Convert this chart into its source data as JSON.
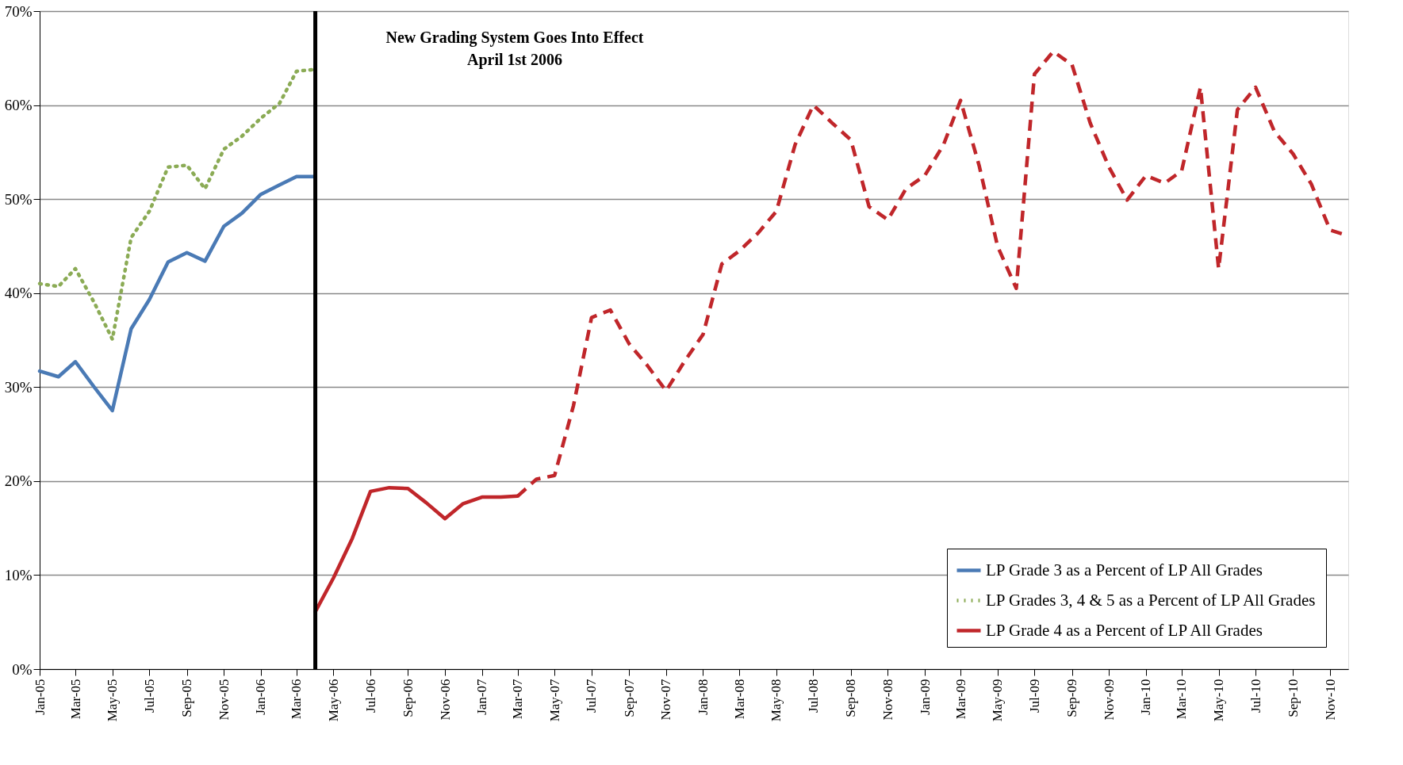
{
  "chart_data": {
    "type": "line",
    "annotations": [
      "New Grading System Goes Into Effect",
      "April 1st 2006"
    ],
    "xlim": [
      "2005-01",
      "2010-12"
    ],
    "xticks": [
      {
        "value": "2005-01",
        "label": "Jan-05"
      },
      {
        "value": "2005-03",
        "label": "Mar-05"
      },
      {
        "value": "2005-05",
        "label": "May-05"
      },
      {
        "value": "2005-07",
        "label": "Jul-05"
      },
      {
        "value": "2005-09",
        "label": "Sep-05"
      },
      {
        "value": "2005-11",
        "label": "Nov-05"
      },
      {
        "value": "2006-01",
        "label": "Jan-06"
      },
      {
        "value": "2006-03",
        "label": "Mar-06"
      },
      {
        "value": "2006-05",
        "label": "May-06"
      },
      {
        "value": "2006-07",
        "label": "Jul-06"
      },
      {
        "value": "2006-09",
        "label": "Sep-06"
      },
      {
        "value": "2006-11",
        "label": "Nov-06"
      },
      {
        "value": "2007-01",
        "label": "Jan-07"
      },
      {
        "value": "2007-03",
        "label": "Mar-07"
      },
      {
        "value": "2007-05",
        "label": "May-07"
      },
      {
        "value": "2007-07",
        "label": "Jul-07"
      },
      {
        "value": "2007-09",
        "label": "Sep-07"
      },
      {
        "value": "2007-11",
        "label": "Nov-07"
      },
      {
        "value": "2008-01",
        "label": "Jan-08"
      },
      {
        "value": "2008-03",
        "label": "Mar-08"
      },
      {
        "value": "2008-05",
        "label": "May-08"
      },
      {
        "value": "2008-07",
        "label": "Jul-08"
      },
      {
        "value": "2008-09",
        "label": "Sep-08"
      },
      {
        "value": "2008-11",
        "label": "Nov-08"
      },
      {
        "value": "2009-01",
        "label": "Jan-09"
      },
      {
        "value": "2009-03",
        "label": "Mar-09"
      },
      {
        "value": "2009-05",
        "label": "May-09"
      },
      {
        "value": "2009-07",
        "label": "Jul-09"
      },
      {
        "value": "2009-09",
        "label": "Sep-09"
      },
      {
        "value": "2009-11",
        "label": "Nov-09"
      },
      {
        "value": "2010-01",
        "label": "Jan-10"
      },
      {
        "value": "2010-03",
        "label": "Mar-10"
      },
      {
        "value": "2010-05",
        "label": "May-10"
      },
      {
        "value": "2010-07",
        "label": "Jul-10"
      },
      {
        "value": "2010-09",
        "label": "Sep-10"
      },
      {
        "value": "2010-11",
        "label": "Nov-10"
      }
    ],
    "ylim": [
      0,
      70
    ],
    "yticks": [
      {
        "value": 0,
        "label": "0%"
      },
      {
        "value": 10,
        "label": "10%"
      },
      {
        "value": 20,
        "label": "20%"
      },
      {
        "value": 30,
        "label": "30%"
      },
      {
        "value": 40,
        "label": "40%"
      },
      {
        "value": 50,
        "label": "50%"
      },
      {
        "value": 60,
        "label": "60%"
      },
      {
        "value": 70,
        "label": "70%"
      }
    ],
    "grid": "y",
    "legend": "bottom right",
    "marker": "none",
    "ref_lines": [
      {
        "axis": "x",
        "value": "2006-04-01",
        "color": "#000000",
        "line_style": "solid"
      }
    ],
    "series": [
      {
        "name": "LP Grade 3 as a Percent of LP All Grades",
        "color": "#4a7ab5",
        "line_style": "solid",
        "x": [
          "2005-01",
          "2005-02",
          "2005-03",
          "2005-04",
          "2005-05",
          "2005-06",
          "2005-07",
          "2005-08",
          "2005-09",
          "2005-10",
          "2005-11",
          "2005-12",
          "2006-01",
          "2006-02",
          "2006-03",
          "2006-04"
        ],
        "values": [
          31.7,
          31.1,
          32.7,
          30.0,
          27.5,
          36.2,
          39.3,
          43.3,
          44.3,
          43.4,
          47.1,
          48.5,
          50.5,
          51.5,
          52.4,
          52.4
        ]
      },
      {
        "name": "LP Grades 3, 4 & 5 as a Percent of LP All Grades",
        "color": "#8bab55",
        "line_style": "dotted",
        "x": [
          "2005-01",
          "2005-02",
          "2005-03",
          "2005-04",
          "2005-05",
          "2005-06",
          "2005-07",
          "2005-08",
          "2005-09",
          "2005-10",
          "2005-11",
          "2005-12",
          "2006-01",
          "2006-02",
          "2006-03",
          "2006-04"
        ],
        "values": [
          41.0,
          40.7,
          42.6,
          39.0,
          35.1,
          45.9,
          48.7,
          53.4,
          53.6,
          51.1,
          55.3,
          56.7,
          58.6,
          60.2,
          63.6,
          63.8
        ]
      },
      {
        "name": "LP Grade 4 as a Percent of LP All Grades",
        "color": "#c0262a",
        "line_style": "solid",
        "x": [
          "2006-04",
          "2006-05",
          "2006-06",
          "2006-07",
          "2006-08",
          "2006-09",
          "2006-10",
          "2006-11",
          "2006-12",
          "2007-01",
          "2007-02",
          "2007-03"
        ],
        "values": [
          6.1,
          9.7,
          13.9,
          18.9,
          19.3,
          19.2,
          17.7,
          16.0,
          17.6,
          18.3,
          18.3,
          18.4
        ]
      },
      {
        "color": "#c0262a",
        "line_style": "dashed",
        "x": [
          "2007-03",
          "2007-04",
          "2007-05",
          "2007-06",
          "2007-07",
          "2007-08",
          "2007-09",
          "2007-10",
          "2007-11",
          "2007-12",
          "2008-01",
          "2008-02",
          "2008-03",
          "2008-04",
          "2008-05",
          "2008-06",
          "2008-07",
          "2008-08",
          "2008-09",
          "2008-10",
          "2008-11",
          "2008-12",
          "2009-01",
          "2009-02",
          "2009-03",
          "2009-04",
          "2009-05",
          "2009-06",
          "2009-07",
          "2009-08",
          "2009-09",
          "2009-10",
          "2009-11",
          "2009-12",
          "2010-01",
          "2010-02",
          "2010-03",
          "2010-04",
          "2010-05",
          "2010-06",
          "2010-07",
          "2010-08",
          "2010-09",
          "2010-10",
          "2010-11",
          "2010-12"
        ],
        "values": [
          18.4,
          20.2,
          20.6,
          28.0,
          37.4,
          38.2,
          34.6,
          32.3,
          29.6,
          32.7,
          35.6,
          43.1,
          44.5,
          46.4,
          48.7,
          55.8,
          60.0,
          58.1,
          56.3,
          49.2,
          47.8,
          51.1,
          52.5,
          55.8,
          60.5,
          53.5,
          45.0,
          40.5,
          63.3,
          65.7,
          64.3,
          58.1,
          53.4,
          49.9,
          52.5,
          51.7,
          53.0,
          61.9,
          42.6,
          59.5,
          61.9,
          57.2,
          54.8,
          51.6,
          46.7,
          46.1
        ]
      }
    ]
  }
}
